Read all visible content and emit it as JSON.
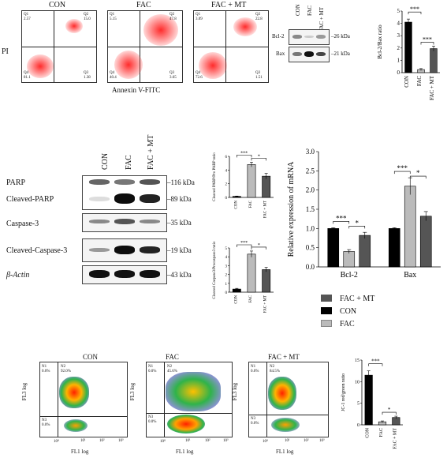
{
  "top_flow": {
    "y_axis_label": "PI",
    "x_axis_label": "Annexin V-FITC",
    "panels": [
      {
        "title": "CON",
        "q1": "Q1\n2.57",
        "q2": "Q2\n15.0",
        "q3": "Q3\n1.38",
        "q4": "Q4\n81.1"
      },
      {
        "title": "FAC",
        "q1": "Q1\n5.15",
        "q2": "Q2\n47.8",
        "q3": "Q3\n3.65",
        "q4": "Q4\n40.4"
      },
      {
        "title": "FAC + MT",
        "q1": "Q1\n3.09",
        "q2": "Q2\n22.8",
        "q3": "Q3\n1.51",
        "q4": "Q4\n72.6"
      }
    ]
  },
  "top_blot": {
    "lanes": [
      "CON",
      "FAC",
      "FAC + MT"
    ],
    "rows": [
      {
        "label": "Bcl-2",
        "kda": "–26 kDa"
      },
      {
        "label": "Bax",
        "kda": "–21 kDa"
      }
    ]
  },
  "mid_blot": {
    "lanes": [
      "CON",
      "FAC",
      "FAC + MT"
    ],
    "rows": [
      {
        "label": "PARP",
        "kda": "–116 kDa"
      },
      {
        "label": "Cleaved-PARP",
        "kda": "–89 kDa"
      },
      {
        "label": "Caspase-3",
        "kda": "–35 kDa"
      },
      {
        "label": "Cleaved-Caspase-3",
        "kda": "–19 kDa"
      },
      {
        "label": "β-Actin",
        "kda": "–43 kDa"
      }
    ]
  },
  "legend": {
    "items": [
      {
        "label": "FAC + MT",
        "color": "#555555"
      },
      {
        "label": "CON",
        "color": "#000000"
      },
      {
        "label": "FAC",
        "color": "#bbbbbb"
      }
    ]
  },
  "bottom_flow": {
    "x_axis_label": "FL1 log",
    "y_axis_label": "FL3 log",
    "panels": [
      {
        "title": "CON",
        "n1": "N1\n0.0%",
        "n2": "N2\n92.0%",
        "n3": "N3\n0.0%",
        "n4": "N4\n8.0%"
      },
      {
        "title": "FAC",
        "n1": "N1\n0.0%",
        "n2": "N2\n45.6%",
        "n3": "N3\n0.0%",
        "n4": "N4\n54.4%"
      },
      {
        "title": "FAC + MT",
        "n1": "N1\n0.0%",
        "n2": "N2\n84.5%",
        "n3": "N3\n0.0%",
        "n4": "N4\n15.5%"
      }
    ],
    "ticks": [
      "10⁰",
      "10¹",
      "10²",
      "10³"
    ]
  },
  "chart_data": [
    {
      "type": "bar",
      "categories": [
        "CON",
        "FAC",
        "FAC + MT"
      ],
      "values": [
        4.1,
        0.25,
        1.95
      ],
      "errors": [
        0.25,
        0.08,
        0.2
      ],
      "ylabel": "Bcl-2/Bax ratio",
      "ylim": [
        0,
        5
      ],
      "yticks": [
        "0",
        "1",
        "2",
        "3",
        "4",
        "5"
      ],
      "significance": [
        "***",
        "***"
      ],
      "colors": [
        "#000000",
        "#bbbbbb",
        "#555555"
      ]
    },
    {
      "type": "bar",
      "categories": [
        "CON",
        "FAC",
        "FAC + MT"
      ],
      "values": [
        0.15,
        4.8,
        3.1
      ],
      "errors": [
        0.05,
        0.35,
        0.4
      ],
      "ylabel": "Cleaved PARP/Pro PARP ratio",
      "ylim": [
        0,
        6
      ],
      "yticks": [
        "0",
        "2",
        "4",
        "6"
      ],
      "significance": [
        "***",
        "*"
      ],
      "colors": [
        "#000000",
        "#bbbbbb",
        "#555555"
      ]
    },
    {
      "type": "bar",
      "categories": [
        "CON",
        "FAC",
        "FAC + MT"
      ],
      "values": [
        0.35,
        4.3,
        2.55
      ],
      "errors": [
        0.08,
        0.35,
        0.25
      ],
      "ylabel": "Cleaved Caspase3/Procaspase3 ratio",
      "ylim": [
        0,
        5
      ],
      "yticks": [
        "0",
        "1",
        "2",
        "3",
        "4",
        "5"
      ],
      "significance": [
        "***",
        "*"
      ],
      "colors": [
        "#000000",
        "#bbbbbb",
        "#555555"
      ]
    },
    {
      "type": "bar",
      "categories": [
        "Bcl-2",
        "Bax"
      ],
      "series": [
        {
          "name": "CON",
          "values": [
            1.0,
            1.0
          ],
          "errors": [
            0.02,
            0.02
          ],
          "color": "#000000"
        },
        {
          "name": "FAC",
          "values": [
            0.4,
            2.1
          ],
          "errors": [
            0.05,
            0.22
          ],
          "color": "#bbbbbb"
        },
        {
          "name": "FAC + MT",
          "values": [
            0.82,
            1.32
          ],
          "errors": [
            0.08,
            0.12
          ],
          "color": "#555555"
        }
      ],
      "ylabel": "Relative expression of mRNA",
      "ylim": [
        0,
        3.0
      ],
      "yticks": [
        "0.0",
        "0.5",
        "1.0",
        "1.5",
        "2.0",
        "2.5",
        "3.0"
      ],
      "significance": [
        "***",
        "*",
        "***",
        "*"
      ]
    },
    {
      "type": "bar",
      "categories": [
        "CON",
        "FAC",
        "FAC + MT"
      ],
      "values": [
        11.5,
        0.7,
        1.7
      ],
      "errors": [
        1.0,
        0.2,
        0.3
      ],
      "ylabel": "JC-1 red/green ratio",
      "ylim": [
        0,
        15
      ],
      "yticks": [
        "0",
        "5",
        "10",
        "15"
      ],
      "significance": [
        "***",
        "*"
      ],
      "colors": [
        "#000000",
        "#bbbbbb",
        "#555555"
      ]
    }
  ]
}
